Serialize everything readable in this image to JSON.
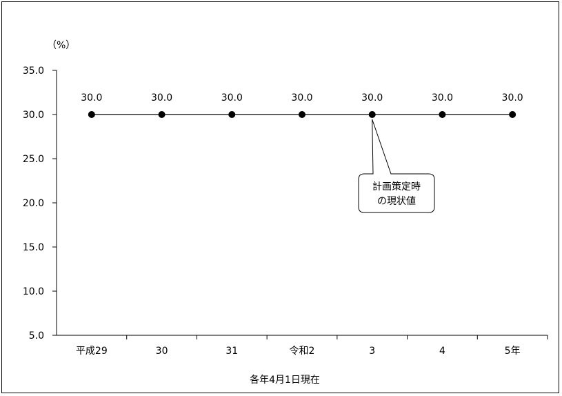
{
  "chart_data": {
    "type": "line",
    "unit_label": "（%）",
    "xlabel": "各年4月1日現在",
    "categories": [
      "平成29",
      "30",
      "31",
      "令和2",
      "3",
      "4",
      "5年"
    ],
    "series": [
      {
        "values": [
          30.0,
          30.0,
          30.0,
          30.0,
          30.0,
          30.0,
          30.0
        ]
      }
    ],
    "data_labels": [
      "30.0",
      "30.0",
      "30.0",
      "30.0",
      "30.0",
      "30.0",
      "30.0"
    ],
    "ylim": [
      5.0,
      35.0
    ],
    "yticks": [
      "35.0",
      "30.0",
      "25.0",
      "20.0",
      "15.0",
      "10.0",
      "5.0"
    ],
    "ytick_values": [
      35,
      30,
      25,
      20,
      15,
      10,
      5
    ],
    "grid": false,
    "annotation": {
      "lines": [
        "計画策定時",
        "の現状値"
      ],
      "target_index": 4
    },
    "colors": {
      "line": "#000000",
      "marker": "#000000"
    }
  }
}
